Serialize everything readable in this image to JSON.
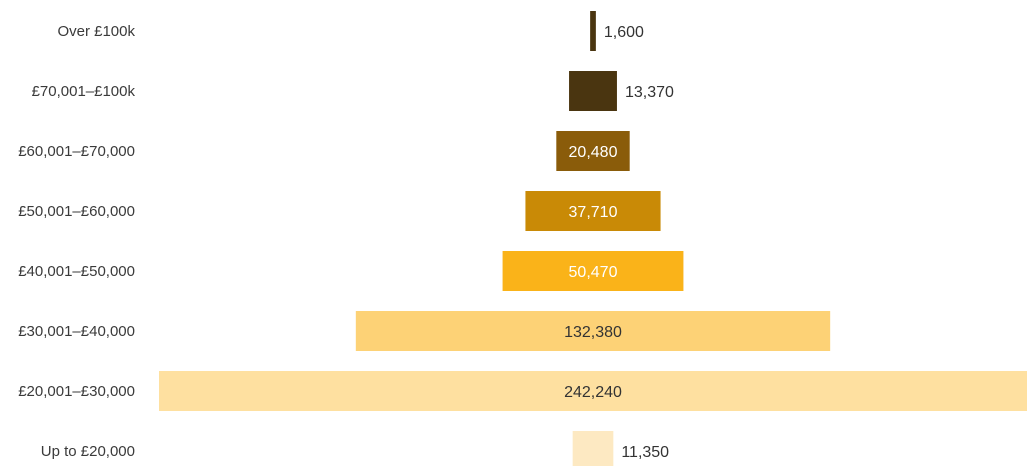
{
  "chart_data": {
    "type": "bar",
    "orientation": "horizontal-centered",
    "categories": [
      "Over £100k",
      "£70,001–£100k",
      "£60,001–£70,000",
      "£50,001–£60,000",
      "£40,001–£50,000",
      "£30,001–£40,000",
      "£20,001–£30,000",
      "Up to £20,000"
    ],
    "values": [
      1600,
      13370,
      20480,
      37710,
      50470,
      132380,
      242240,
      11350
    ],
    "value_labels": [
      "1,600",
      "13,370",
      "20,480",
      "37,710",
      "50,470",
      "132,380",
      "242,240",
      "11,350"
    ],
    "bar_colors": [
      "#4a3510",
      "#4a3510",
      "#8a5c0a",
      "#c98a06",
      "#fab319",
      "#fdd276",
      "#fee0a0",
      "#fde9c2"
    ],
    "label_inside": [
      false,
      false,
      true,
      true,
      true,
      true,
      true,
      false
    ],
    "value_label_color_inside": "#ffffff",
    "value_label_color_dark": "#333333",
    "grid": false,
    "legend": "none",
    "title": "",
    "xlabel": "",
    "ylabel": ""
  }
}
